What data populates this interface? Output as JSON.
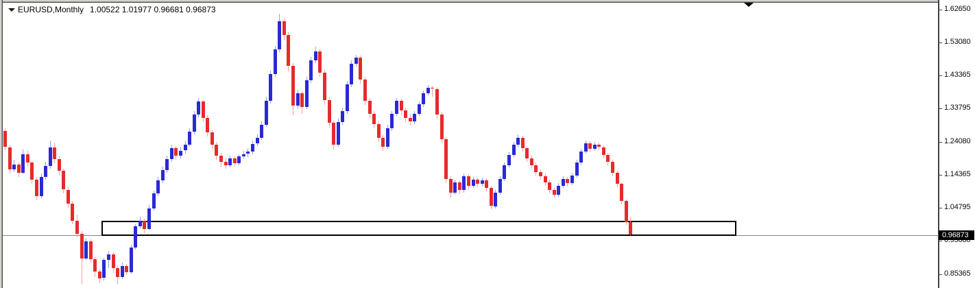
{
  "header": {
    "symbol": "EURUSD,Monthly",
    "ohlc_text": "1.00522 1.01977 0.96681 0.96873"
  },
  "price_axis": {
    "current_price": "0.96873",
    "labels": [
      "1.62650",
      "1.53080",
      "1.43365",
      "1.33795",
      "1.24080",
      "1.14365",
      "1.04795",
      "0.95080",
      "0.85365"
    ]
  },
  "colors": {
    "bull_body": "#2929d6",
    "bear_body": "#e62b2b",
    "bull_wick": "#9b9be8",
    "bear_wick": "#f2a3a3",
    "price_line": "#848484",
    "rectangle_border": "#000000",
    "badge_bg": "#000000",
    "badge_text": "#ffffff",
    "axis_text": "#0a0a0a",
    "frame_gray": "#d6d3ce"
  },
  "chart_data": {
    "type": "candlestick",
    "title": "EURUSD,Monthly",
    "symbol": "EURUSD",
    "timeframe": "Monthly",
    "grid": false,
    "legend_position": "none",
    "ylim": [
      0.82,
      1.645
    ],
    "y_axis_ticks": [
      "1.62650",
      "1.53080",
      "1.43365",
      "1.33795",
      "1.24080",
      "1.14365",
      "1.04795",
      "0.95080",
      "0.85365"
    ],
    "current_price": 0.96873,
    "last_bar": {
      "open": 1.00522,
      "high": 1.01977,
      "low": 0.96681,
      "close": 0.96873
    },
    "annotations": {
      "support_rectangle": {
        "price_top": 1.0095,
        "price_bottom": 0.9706
      },
      "current_price_line": 0.96873,
      "shift_marker": "top-right-triangle"
    },
    "candles_ohlc": [
      [
        1.272,
        1.28,
        1.215,
        1.225
      ],
      [
        1.225,
        1.232,
        1.148,
        1.16
      ],
      [
        1.16,
        1.188,
        1.152,
        1.175
      ],
      [
        1.175,
        1.18,
        1.138,
        1.15
      ],
      [
        1.15,
        1.218,
        1.145,
        1.205
      ],
      [
        1.205,
        1.215,
        1.168,
        1.18
      ],
      [
        1.18,
        1.185,
        1.118,
        1.13
      ],
      [
        1.13,
        1.138,
        1.07,
        1.082
      ],
      [
        1.082,
        1.148,
        1.075,
        1.138
      ],
      [
        1.138,
        1.182,
        1.13,
        1.17
      ],
      [
        1.17,
        1.245,
        1.162,
        1.225
      ],
      [
        1.225,
        1.238,
        1.178,
        1.19
      ],
      [
        1.19,
        1.198,
        1.142,
        1.155
      ],
      [
        1.155,
        1.162,
        1.09,
        1.1
      ],
      [
        1.1,
        1.108,
        1.048,
        1.06
      ],
      [
        1.06,
        1.068,
        1.0,
        1.01
      ],
      [
        1.01,
        1.028,
        0.962,
        0.972
      ],
      [
        0.972,
        0.98,
        0.824,
        0.9
      ],
      [
        0.9,
        0.96,
        0.895,
        0.95
      ],
      [
        0.95,
        0.956,
        0.888,
        0.898
      ],
      [
        0.898,
        0.905,
        0.845,
        0.862
      ],
      [
        0.862,
        0.87,
        0.828,
        0.842
      ],
      [
        0.842,
        0.902,
        0.836,
        0.895
      ],
      [
        0.895,
        0.922,
        0.872,
        0.912
      ],
      [
        0.912,
        0.918,
        0.858,
        0.872
      ],
      [
        0.872,
        0.88,
        0.823,
        0.846
      ],
      [
        0.846,
        0.888,
        0.84,
        0.878
      ],
      [
        0.878,
        0.884,
        0.852,
        0.86
      ],
      [
        0.86,
        0.94,
        0.855,
        0.932
      ],
      [
        0.932,
        1.0,
        0.926,
        0.994
      ],
      [
        0.994,
        1.022,
        0.988,
        1.01
      ],
      [
        1.01,
        1.016,
        0.974,
        0.986
      ],
      [
        0.986,
        1.055,
        0.98,
        1.046
      ],
      [
        1.046,
        1.098,
        1.04,
        1.09
      ],
      [
        1.09,
        1.138,
        1.082,
        1.128
      ],
      [
        1.128,
        1.168,
        1.12,
        1.158
      ],
      [
        1.158,
        1.2,
        1.15,
        1.19
      ],
      [
        1.19,
        1.232,
        1.182,
        1.222
      ],
      [
        1.222,
        1.228,
        1.188,
        1.2
      ],
      [
        1.2,
        1.226,
        1.192,
        1.215
      ],
      [
        1.215,
        1.242,
        1.206,
        1.232
      ],
      [
        1.232,
        1.28,
        1.225,
        1.27
      ],
      [
        1.27,
        1.33,
        1.262,
        1.32
      ],
      [
        1.32,
        1.368,
        1.312,
        1.358
      ],
      [
        1.358,
        1.362,
        1.298,
        1.31
      ],
      [
        1.31,
        1.318,
        1.255,
        1.268
      ],
      [
        1.268,
        1.275,
        1.22,
        1.232
      ],
      [
        1.232,
        1.24,
        1.188,
        1.2
      ],
      [
        1.2,
        1.208,
        1.166,
        1.182
      ],
      [
        1.182,
        1.195,
        1.163,
        1.172
      ],
      [
        1.172,
        1.2,
        1.166,
        1.192
      ],
      [
        1.192,
        1.198,
        1.167,
        1.178
      ],
      [
        1.178,
        1.205,
        1.172,
        1.198
      ],
      [
        1.198,
        1.215,
        1.19,
        1.205
      ],
      [
        1.205,
        1.222,
        1.196,
        1.212
      ],
      [
        1.212,
        1.245,
        1.205,
        1.235
      ],
      [
        1.235,
        1.262,
        1.228,
        1.252
      ],
      [
        1.252,
        1.3,
        1.246,
        1.29
      ],
      [
        1.29,
        1.372,
        1.284,
        1.36
      ],
      [
        1.36,
        1.448,
        1.352,
        1.438
      ],
      [
        1.438,
        1.52,
        1.43,
        1.51
      ],
      [
        1.51,
        1.615,
        1.502,
        1.592
      ],
      [
        1.592,
        1.6,
        1.535,
        1.552
      ],
      [
        1.552,
        1.56,
        1.445,
        1.462
      ],
      [
        1.462,
        1.47,
        1.318,
        1.345
      ],
      [
        1.345,
        1.392,
        1.335,
        1.382
      ],
      [
        1.382,
        1.388,
        1.322,
        1.342
      ],
      [
        1.342,
        1.43,
        1.335,
        1.42
      ],
      [
        1.42,
        1.488,
        1.412,
        1.478
      ],
      [
        1.478,
        1.518,
        1.47,
        1.505
      ],
      [
        1.505,
        1.512,
        1.43,
        1.442
      ],
      [
        1.442,
        1.45,
        1.348,
        1.362
      ],
      [
        1.362,
        1.37,
        1.282,
        1.296
      ],
      [
        1.296,
        1.302,
        1.218,
        1.232
      ],
      [
        1.232,
        1.308,
        1.225,
        1.298
      ],
      [
        1.298,
        1.34,
        1.29,
        1.33
      ],
      [
        1.33,
        1.418,
        1.322,
        1.408
      ],
      [
        1.408,
        1.478,
        1.4,
        1.468
      ],
      [
        1.468,
        1.495,
        1.46,
        1.487
      ],
      [
        1.487,
        1.492,
        1.41,
        1.422
      ],
      [
        1.422,
        1.43,
        1.348,
        1.36
      ],
      [
        1.36,
        1.368,
        1.31,
        1.322
      ],
      [
        1.322,
        1.33,
        1.28,
        1.292
      ],
      [
        1.292,
        1.3,
        1.24,
        1.252
      ],
      [
        1.252,
        1.26,
        1.213,
        1.226
      ],
      [
        1.226,
        1.29,
        1.22,
        1.28
      ],
      [
        1.28,
        1.33,
        1.272,
        1.322
      ],
      [
        1.322,
        1.368,
        1.315,
        1.36
      ],
      [
        1.36,
        1.366,
        1.32,
        1.332
      ],
      [
        1.332,
        1.34,
        1.298,
        1.31
      ],
      [
        1.31,
        1.322,
        1.288,
        1.3
      ],
      [
        1.3,
        1.33,
        1.292,
        1.322
      ],
      [
        1.322,
        1.358,
        1.315,
        1.35
      ],
      [
        1.35,
        1.39,
        1.342,
        1.382
      ],
      [
        1.382,
        1.406,
        1.375,
        1.398
      ],
      [
        1.398,
        1.404,
        1.372,
        1.395
      ],
      [
        1.395,
        1.4,
        1.308,
        1.32
      ],
      [
        1.32,
        1.328,
        1.235,
        1.248
      ],
      [
        1.248,
        1.255,
        1.12,
        1.132
      ],
      [
        1.132,
        1.14,
        1.075,
        1.092
      ],
      [
        1.092,
        1.13,
        1.085,
        1.122
      ],
      [
        1.122,
        1.128,
        1.088,
        1.1
      ],
      [
        1.1,
        1.148,
        1.092,
        1.14
      ],
      [
        1.14,
        1.146,
        1.1,
        1.112
      ],
      [
        1.112,
        1.138,
        1.105,
        1.13
      ],
      [
        1.13,
        1.136,
        1.108,
        1.118
      ],
      [
        1.118,
        1.136,
        1.11,
        1.128
      ],
      [
        1.128,
        1.134,
        1.095,
        1.105
      ],
      [
        1.105,
        1.112,
        1.044,
        1.052
      ],
      [
        1.052,
        1.1,
        1.045,
        1.092
      ],
      [
        1.092,
        1.14,
        1.085,
        1.132
      ],
      [
        1.132,
        1.18,
        1.125,
        1.172
      ],
      [
        1.172,
        1.21,
        1.165,
        1.202
      ],
      [
        1.202,
        1.24,
        1.195,
        1.232
      ],
      [
        1.232,
        1.262,
        1.225,
        1.252
      ],
      [
        1.252,
        1.258,
        1.212,
        1.222
      ],
      [
        1.222,
        1.228,
        1.182,
        1.192
      ],
      [
        1.192,
        1.2,
        1.162,
        1.172
      ],
      [
        1.172,
        1.18,
        1.142,
        1.152
      ],
      [
        1.152,
        1.16,
        1.13,
        1.14
      ],
      [
        1.14,
        1.148,
        1.112,
        1.122
      ],
      [
        1.122,
        1.13,
        1.09,
        1.1
      ],
      [
        1.1,
        1.108,
        1.078,
        1.086
      ],
      [
        1.086,
        1.12,
        1.08,
        1.112
      ],
      [
        1.112,
        1.14,
        1.105,
        1.132
      ],
      [
        1.132,
        1.138,
        1.11,
        1.12
      ],
      [
        1.12,
        1.15,
        1.114,
        1.142
      ],
      [
        1.142,
        1.188,
        1.136,
        1.18
      ],
      [
        1.18,
        1.22,
        1.174,
        1.212
      ],
      [
        1.212,
        1.244,
        1.206,
        1.236
      ],
      [
        1.236,
        1.242,
        1.21,
        1.22
      ],
      [
        1.22,
        1.24,
        1.214,
        1.232
      ],
      [
        1.232,
        1.238,
        1.215,
        1.225
      ],
      [
        1.225,
        1.23,
        1.192,
        1.202
      ],
      [
        1.202,
        1.208,
        1.172,
        1.182
      ],
      [
        1.182,
        1.188,
        1.14,
        1.15
      ],
      [
        1.15,
        1.156,
        1.108,
        1.118
      ],
      [
        1.118,
        1.122,
        1.058,
        1.068
      ],
      [
        1.068,
        1.072,
        0.998,
        1.005
      ],
      [
        1.00522,
        1.01977,
        0.96681,
        0.96873
      ]
    ]
  }
}
